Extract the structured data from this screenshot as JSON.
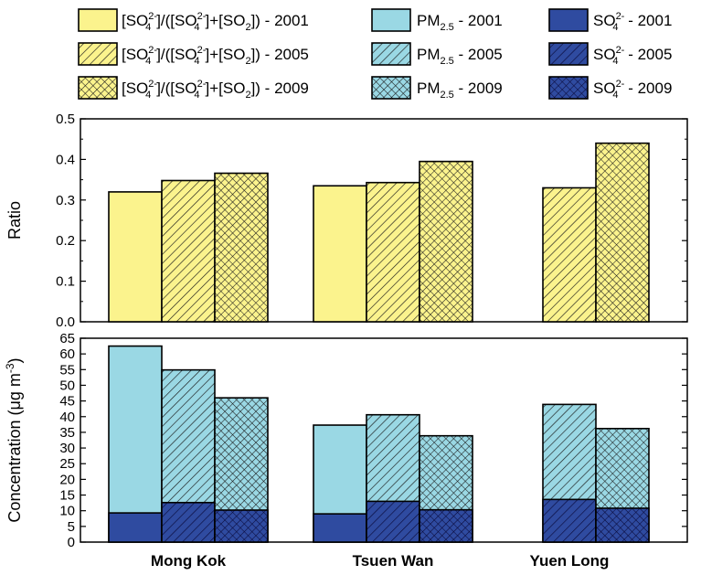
{
  "colors": {
    "ratio_fill": "#fbf38d",
    "pm_fill": "#9ad8e4",
    "so4_fill": "#2f4ba0",
    "hatch": "#1a1a1a",
    "hatch_dark": "#0a0a3a"
  },
  "legend": [
    {
      "kind": "ratio",
      "year": "2001",
      "pattern": "solid",
      "label": "[SO4 2-]/([SO4 2-]+[SO2]) - 2001"
    },
    {
      "kind": "pm",
      "year": "2001",
      "pattern": "solid",
      "label": "PM2.5 - 2001"
    },
    {
      "kind": "so4",
      "year": "2001",
      "pattern": "solid",
      "label": "SO4 2- - 2001"
    },
    {
      "kind": "ratio",
      "year": "2005",
      "pattern": "diag",
      "label": "[SO4 2-]/([SO4 2-]+[SO2]) - 2005"
    },
    {
      "kind": "pm",
      "year": "2005",
      "pattern": "diag",
      "label": "PM2.5 - 2005"
    },
    {
      "kind": "so4",
      "year": "2005",
      "pattern": "diag",
      "label": "SO4 2- - 2005"
    },
    {
      "kind": "ratio",
      "year": "2009",
      "pattern": "cross",
      "label": "[SO4 2-]/([SO4 2-]+[SO2]) - 2009"
    },
    {
      "kind": "pm",
      "year": "2009",
      "pattern": "cross",
      "label": "PM2.5 - 2009"
    },
    {
      "kind": "so4",
      "year": "2009",
      "pattern": "cross",
      "label": "SO4 2- - 2009"
    }
  ],
  "chart_data": [
    {
      "type": "bar",
      "title": "",
      "xlabel": "",
      "ylabel": "Ratio",
      "ylim": [
        0,
        0.5
      ],
      "yticks": [
        "0.0",
        "0.1",
        "0.2",
        "0.3",
        "0.4",
        "0.5"
      ],
      "categories": [
        "Mong Kok",
        "Tsuen Wan",
        "Yuen Long"
      ],
      "series": [
        {
          "name": "[SO4 2-]/([SO4 2-]+[SO2]) - 2001",
          "values": [
            0.32,
            0.335,
            null
          ]
        },
        {
          "name": "[SO4 2-]/([SO4 2-]+[SO2]) - 2005",
          "values": [
            0.348,
            0.343,
            0.33
          ]
        },
        {
          "name": "[SO4 2-]/([SO4 2-]+[SO2]) - 2009",
          "values": [
            0.366,
            0.395,
            0.44
          ]
        }
      ]
    },
    {
      "type": "bar",
      "title": "",
      "xlabel": "",
      "ylabel": "Concentration (μg m-3)",
      "ylim": [
        0,
        65
      ],
      "yticks": [
        "0",
        "5",
        "10",
        "15",
        "20",
        "25",
        "30",
        "35",
        "40",
        "45",
        "50",
        "55",
        "60",
        "65"
      ],
      "categories": [
        "Mong Kok",
        "Tsuen Wan",
        "Yuen Long"
      ],
      "series": [
        {
          "name": "PM2.5 - 2001",
          "values": [
            62.5,
            37.3,
            null
          ]
        },
        {
          "name": "PM2.5 - 2005",
          "values": [
            54.9,
            40.6,
            43.9
          ]
        },
        {
          "name": "PM2.5 - 2009",
          "values": [
            46.0,
            33.9,
            36.2
          ]
        },
        {
          "name": "SO4 2- - 2001",
          "values": [
            9.3,
            9.0,
            null
          ]
        },
        {
          "name": "SO4 2- - 2005",
          "values": [
            12.6,
            13.0,
            13.6
          ]
        },
        {
          "name": "SO4 2- - 2009",
          "values": [
            10.2,
            10.3,
            10.8
          ]
        }
      ]
    }
  ]
}
